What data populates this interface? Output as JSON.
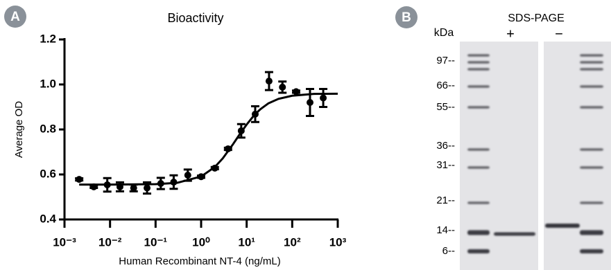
{
  "chart_data": [
    {
      "type": "scatter",
      "panel": "A",
      "title": "Bioactivity",
      "x_label": "Human Recombinant NT-4 (ng/mL)",
      "y_label": "Average OD",
      "x_scale": "log",
      "xlim": [
        0.001,
        1000
      ],
      "xticks": [
        {
          "value": 0.001,
          "label": "10⁻³"
        },
        {
          "value": 0.01,
          "label": "10⁻²"
        },
        {
          "value": 0.1,
          "label": "10⁻¹"
        },
        {
          "value": 1,
          "label": "10⁰"
        },
        {
          "value": 10,
          "label": "10¹"
        },
        {
          "value": 100,
          "label": "10²"
        },
        {
          "value": 1000,
          "label": "10³"
        }
      ],
      "ylim": [
        0.4,
        1.2
      ],
      "yticks": [
        0.4,
        0.6,
        0.8,
        {
          "value": 1,
          "label": "1.0"
        },
        1.2
      ],
      "series": [
        {
          "type": "scatter",
          "color": "#000000",
          "x": [
            0.0021,
            0.0044,
            0.0087,
            0.0165,
            0.033,
            0.065,
            0.13,
            0.25,
            0.51,
            1.0,
            2.0,
            3.9,
            7.6,
            15.4,
            31,
            61,
            122,
            246,
            480
          ],
          "values": [
            0.578,
            0.545,
            0.554,
            0.545,
            0.54,
            0.54,
            0.56,
            0.566,
            0.597,
            0.59,
            0.628,
            0.714,
            0.794,
            0.868,
            1.015,
            0.988,
            0.968,
            0.92,
            0.94
          ],
          "errors": [
            0.005,
            0.005,
            0.03,
            0.02,
            0.015,
            0.025,
            0.025,
            0.03,
            0.025,
            0.005,
            0.005,
            0.005,
            0.03,
            0.035,
            0.04,
            0.025,
            0.005,
            0.06,
            0.04
          ]
        },
        {
          "type": "line",
          "color": "#000000",
          "x": [
            0.0021,
            0.01,
            0.1,
            0.3,
            1,
            2,
            3,
            5,
            7,
            10,
            15,
            20,
            30,
            50,
            100,
            300,
            1000
          ],
          "values": [
            0.555,
            0.555,
            0.557,
            0.563,
            0.591,
            0.633,
            0.672,
            0.734,
            0.778,
            0.822,
            0.866,
            0.89,
            0.916,
            0.936,
            0.95,
            0.958,
            0.959
          ]
        }
      ]
    },
    {
      "type": "gel",
      "panel": "B",
      "title": "SDS-PAGE",
      "y_label": "kDa",
      "lanes": [
        "+",
        "−"
      ],
      "markers": [
        "97--",
        "66--",
        "55--",
        "36--",
        "31--",
        "21--",
        "14--",
        "6--"
      ]
    }
  ]
}
